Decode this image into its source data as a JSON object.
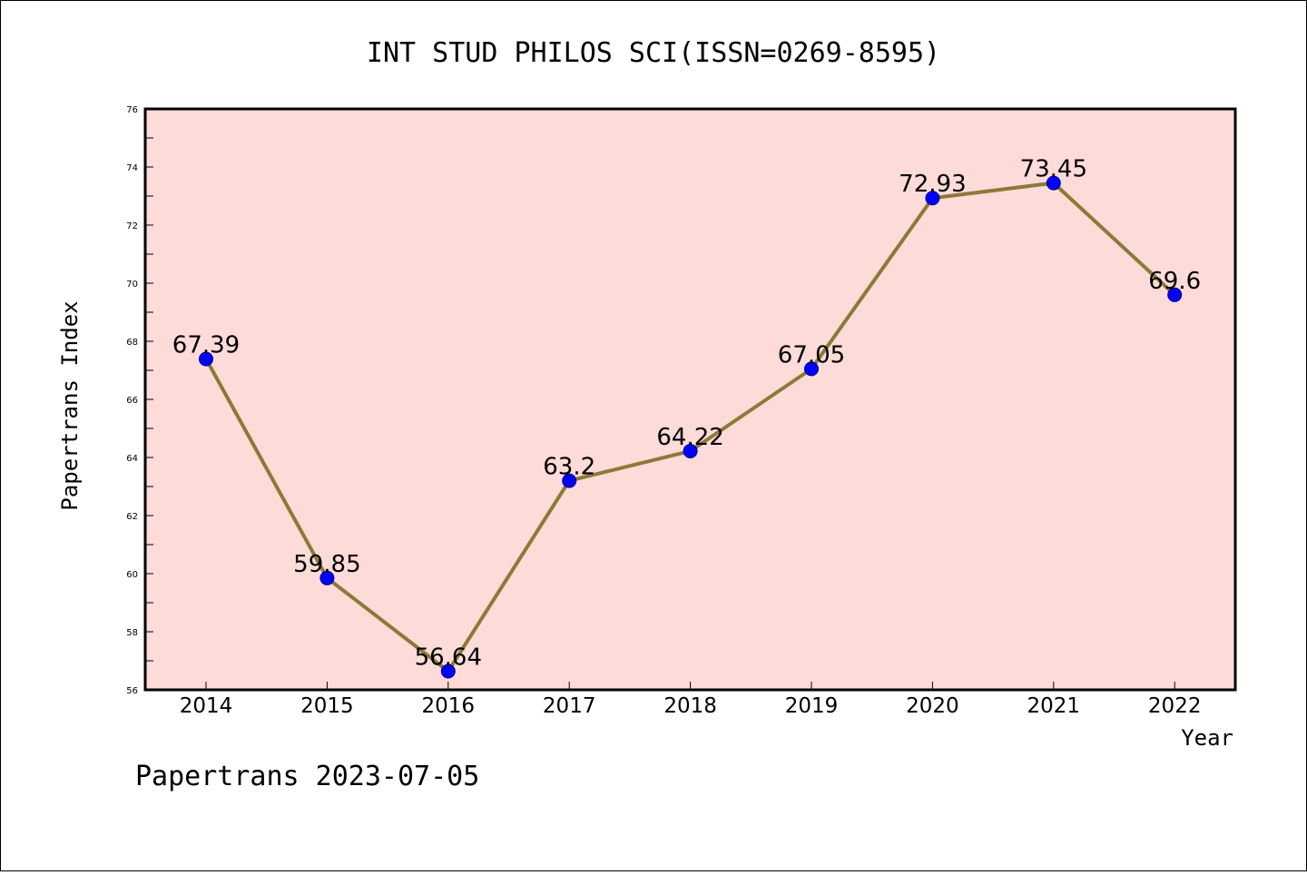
{
  "footer": "Papertrans 2023-07-05",
  "colors": {
    "plot_background": "#fddbd8",
    "line": "#8b7a37",
    "marker": "#0000ff",
    "axis": "#000000"
  },
  "chart_data": {
    "type": "line",
    "title": "INT STUD PHILOS SCI(ISSN=0269-8595)",
    "xlabel": "Year",
    "ylabel": "Papertrans Index",
    "categories": [
      "2014",
      "2015",
      "2016",
      "2017",
      "2018",
      "2019",
      "2020",
      "2021",
      "2022"
    ],
    "series": [
      {
        "values": [
          67.39,
          59.85,
          56.64,
          63.2,
          64.22,
          67.05,
          72.93,
          73.45,
          69.6
        ],
        "labels": [
          "67.39",
          "59.85",
          "56.64",
          "63.2",
          "64.22",
          "67.05",
          "72.93",
          "73.45",
          "69.6"
        ]
      }
    ],
    "ylim": [
      56,
      76
    ],
    "yticks": [
      "56",
      "58",
      "60",
      "62",
      "64",
      "66",
      "68",
      "70",
      "72",
      "74",
      "76"
    ],
    "grid": false,
    "legend": "none"
  }
}
